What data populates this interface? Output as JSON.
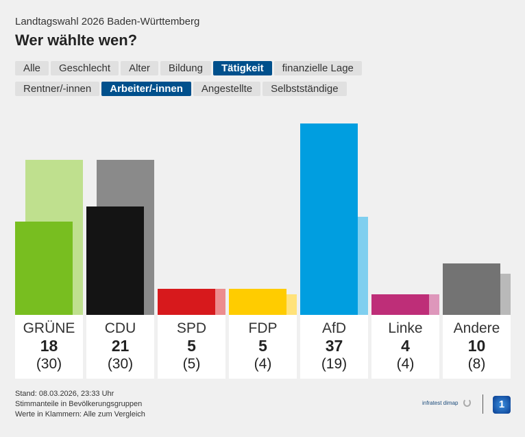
{
  "header": {
    "supertitle": "Landtagswahl 2026 Baden-Württemberg",
    "title": "Wer wählte wen?"
  },
  "tabs_row1": [
    {
      "label": "Alle",
      "active": false
    },
    {
      "label": "Geschlecht",
      "active": false
    },
    {
      "label": "Alter",
      "active": false
    },
    {
      "label": "Bildung",
      "active": false
    },
    {
      "label": "Tätigkeit",
      "active": true
    },
    {
      "label": "finanzielle Lage",
      "active": false
    }
  ],
  "tabs_row2": [
    {
      "label": "Rentner/-innen",
      "active": false
    },
    {
      "label": "Arbeiter/-innen",
      "active": true
    },
    {
      "label": "Angestellte",
      "active": false
    },
    {
      "label": "Selbstständige",
      "active": false
    }
  ],
  "chart_data": {
    "type": "bar",
    "categories": [
      "GRÜNE",
      "CDU",
      "SPD",
      "FDP",
      "AfD",
      "Linke",
      "Andere"
    ],
    "series": [
      {
        "name": "Arbeiter/-innen",
        "values": [
          18,
          21,
          5,
          5,
          37,
          4,
          10
        ]
      },
      {
        "name": "Alle",
        "values": [
          30,
          30,
          5,
          4,
          19,
          4,
          8
        ]
      }
    ],
    "comparison_labels": [
      "(30)",
      "(30)",
      "(5)",
      "(4)",
      "(19)",
      "(4)",
      "(8)"
    ],
    "colors": [
      "#78be20",
      "#141414",
      "#d7191c",
      "#ffcc00",
      "#009ee0",
      "#be2e78",
      "#737373"
    ],
    "comparison_colors": [
      "#bfe08e",
      "#8a8a8a",
      "#ec8c8e",
      "#ffe27a",
      "#7fcfef",
      "#de97bb",
      "#b9b9b9"
    ],
    "ylim": [
      0,
      37
    ]
  },
  "footer": {
    "lines": [
      "Stand: 08.03.2026, 23:33 Uhr",
      "Stimmanteile in Bevölkerungsgruppen",
      "Werte in Klammern: Alle zum Vergleich"
    ],
    "source": "infratest dimap",
    "logo": "1"
  }
}
